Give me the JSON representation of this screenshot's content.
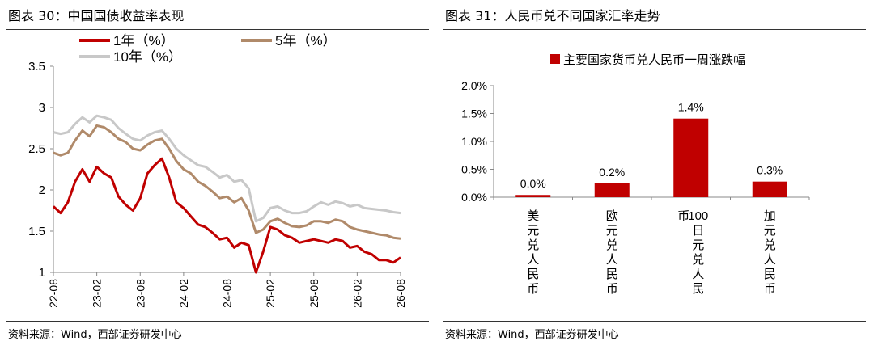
{
  "left": {
    "title": "图表 30：中国国债收益率表现",
    "source": "资料来源：Wind，西部证券研发中心",
    "chart_data": {
      "type": "line",
      "title": "",
      "xlabel": "",
      "ylabel": "",
      "ylim": [
        1,
        3.5
      ],
      "yticks": [
        "1",
        "1.5",
        "2",
        "2.5",
        "3",
        "3.5"
      ],
      "x_ticks": [
        "22-08",
        "23-02",
        "23-08",
        "24-02",
        "24-08",
        "25-02",
        "25-08",
        "26-02",
        "26-08"
      ],
      "legend_position": "top",
      "grid": false,
      "series": [
        {
          "name": "1年（%）",
          "color": "#C00000",
          "points": [
            [
              "22-08",
              1.8
            ],
            [
              "22-09",
              1.72
            ],
            [
              "22-10",
              1.85
            ],
            [
              "22-11",
              2.1
            ],
            [
              "22-12",
              2.25
            ],
            [
              "23-01",
              2.1
            ],
            [
              "23-02",
              2.28
            ],
            [
              "23-03",
              2.2
            ],
            [
              "23-04",
              2.15
            ],
            [
              "23-05",
              1.92
            ],
            [
              "23-06",
              1.82
            ],
            [
              "23-07",
              1.75
            ],
            [
              "23-08",
              1.9
            ],
            [
              "23-09",
              2.2
            ],
            [
              "23-10",
              2.3
            ],
            [
              "23-11",
              2.38
            ],
            [
              "23-12",
              2.15
            ],
            [
              "24-01",
              1.85
            ],
            [
              "24-02",
              1.78
            ],
            [
              "24-03",
              1.68
            ],
            [
              "24-04",
              1.58
            ],
            [
              "24-05",
              1.55
            ],
            [
              "24-06",
              1.48
            ],
            [
              "24-07",
              1.4
            ],
            [
              "24-08",
              1.42
            ],
            [
              "24-09",
              1.3
            ],
            [
              "24-10",
              1.36
            ],
            [
              "24-11",
              1.33
            ],
            [
              "24-12",
              1.0
            ],
            [
              "25-01",
              1.25
            ],
            [
              "25-02",
              1.55
            ],
            [
              "25-03",
              1.52
            ],
            [
              "25-04",
              1.45
            ],
            [
              "25-05",
              1.42
            ],
            [
              "25-06",
              1.36
            ],
            [
              "25-07",
              1.38
            ],
            [
              "25-08",
              1.4
            ],
            [
              "25-09",
              1.38
            ],
            [
              "25-10",
              1.36
            ],
            [
              "25-11",
              1.4
            ],
            [
              "25-12",
              1.38
            ],
            [
              "26-01",
              1.3
            ],
            [
              "26-02",
              1.32
            ],
            [
              "26-03",
              1.25
            ],
            [
              "26-04",
              1.22
            ],
            [
              "26-05",
              1.15
            ],
            [
              "26-06",
              1.15
            ],
            [
              "26-07",
              1.12
            ],
            [
              "26-08",
              1.18
            ]
          ]
        },
        {
          "name": "5年（%）",
          "color": "#B08A6A",
          "points": [
            [
              "22-08",
              2.45
            ],
            [
              "22-09",
              2.42
            ],
            [
              "22-10",
              2.45
            ],
            [
              "22-11",
              2.6
            ],
            [
              "22-12",
              2.72
            ],
            [
              "23-01",
              2.65
            ],
            [
              "23-02",
              2.78
            ],
            [
              "23-03",
              2.76
            ],
            [
              "23-04",
              2.7
            ],
            [
              "23-05",
              2.62
            ],
            [
              "23-06",
              2.58
            ],
            [
              "23-07",
              2.5
            ],
            [
              "23-08",
              2.48
            ],
            [
              "23-09",
              2.55
            ],
            [
              "23-10",
              2.6
            ],
            [
              "23-11",
              2.62
            ],
            [
              "23-12",
              2.5
            ],
            [
              "24-01",
              2.35
            ],
            [
              "24-02",
              2.25
            ],
            [
              "24-03",
              2.2
            ],
            [
              "24-04",
              2.1
            ],
            [
              "24-05",
              2.05
            ],
            [
              "24-06",
              1.98
            ],
            [
              "24-07",
              1.9
            ],
            [
              "24-08",
              1.92
            ],
            [
              "24-09",
              1.85
            ],
            [
              "24-10",
              1.9
            ],
            [
              "24-11",
              1.75
            ],
            [
              "24-12",
              1.48
            ],
            [
              "25-01",
              1.52
            ],
            [
              "25-02",
              1.62
            ],
            [
              "25-03",
              1.65
            ],
            [
              "25-04",
              1.6
            ],
            [
              "25-05",
              1.56
            ],
            [
              "25-06",
              1.55
            ],
            [
              "25-07",
              1.57
            ],
            [
              "25-08",
              1.62
            ],
            [
              "25-09",
              1.62
            ],
            [
              "25-10",
              1.6
            ],
            [
              "25-11",
              1.64
            ],
            [
              "25-12",
              1.62
            ],
            [
              "26-01",
              1.55
            ],
            [
              "26-02",
              1.52
            ],
            [
              "26-03",
              1.5
            ],
            [
              "26-04",
              1.48
            ],
            [
              "26-05",
              1.46
            ],
            [
              "26-06",
              1.45
            ],
            [
              "26-07",
              1.42
            ],
            [
              "26-08",
              1.41
            ]
          ]
        },
        {
          "name": "10年（%）",
          "color": "#C8C8C8",
          "points": [
            [
              "22-08",
              2.7
            ],
            [
              "22-09",
              2.68
            ],
            [
              "22-10",
              2.7
            ],
            [
              "22-11",
              2.8
            ],
            [
              "22-12",
              2.88
            ],
            [
              "23-01",
              2.82
            ],
            [
              "23-02",
              2.9
            ],
            [
              "23-03",
              2.88
            ],
            [
              "23-04",
              2.85
            ],
            [
              "23-05",
              2.75
            ],
            [
              "23-06",
              2.68
            ],
            [
              "23-07",
              2.62
            ],
            [
              "23-08",
              2.6
            ],
            [
              "23-09",
              2.66
            ],
            [
              "23-10",
              2.7
            ],
            [
              "23-11",
              2.72
            ],
            [
              "23-12",
              2.62
            ],
            [
              "24-01",
              2.5
            ],
            [
              "24-02",
              2.42
            ],
            [
              "24-03",
              2.36
            ],
            [
              "24-04",
              2.3
            ],
            [
              "24-05",
              2.28
            ],
            [
              "24-06",
              2.22
            ],
            [
              "24-07",
              2.15
            ],
            [
              "24-08",
              2.18
            ],
            [
              "24-09",
              2.1
            ],
            [
              "24-10",
              2.12
            ],
            [
              "24-11",
              2.02
            ],
            [
              "24-12",
              1.62
            ],
            [
              "25-01",
              1.66
            ],
            [
              "25-02",
              1.78
            ],
            [
              "25-03",
              1.8
            ],
            [
              "25-04",
              1.75
            ],
            [
              "25-05",
              1.72
            ],
            [
              "25-06",
              1.72
            ],
            [
              "25-07",
              1.74
            ],
            [
              "25-08",
              1.8
            ],
            [
              "25-09",
              1.85
            ],
            [
              "25-10",
              1.82
            ],
            [
              "25-11",
              1.86
            ],
            [
              "25-12",
              1.84
            ],
            [
              "26-01",
              1.8
            ],
            [
              "26-02",
              1.82
            ],
            [
              "26-03",
              1.78
            ],
            [
              "26-04",
              1.77
            ],
            [
              "26-05",
              1.76
            ],
            [
              "26-06",
              1.75
            ],
            [
              "26-07",
              1.73
            ],
            [
              "26-08",
              1.72
            ]
          ]
        }
      ]
    }
  },
  "right": {
    "title": "图表 31：人民币兑不同国家汇率走势",
    "source": "资料来源：Wind，西部证券研发中心",
    "chart_data": {
      "type": "bar",
      "title": "",
      "xlabel": "",
      "ylabel": "",
      "ylim": [
        0,
        0.02
      ],
      "yticks": [
        "0.0%",
        "0.5%",
        "1.0%",
        "1.5%",
        "2.0%"
      ],
      "legend_position": "top",
      "grid": false,
      "categories": [
        "美元兑人民币",
        "欧元兑人民币",
        "100日元兑人民币",
        "加元兑人民币"
      ],
      "series": [
        {
          "name": "主要国家货币兑人民币一周涨跌幅",
          "color": "#C00000",
          "values": [
            0.0004,
            0.0025,
            0.0141,
            0.0028
          ],
          "labels": [
            "0.0%",
            "0.2%",
            "1.4%",
            "0.3%"
          ]
        }
      ]
    }
  }
}
